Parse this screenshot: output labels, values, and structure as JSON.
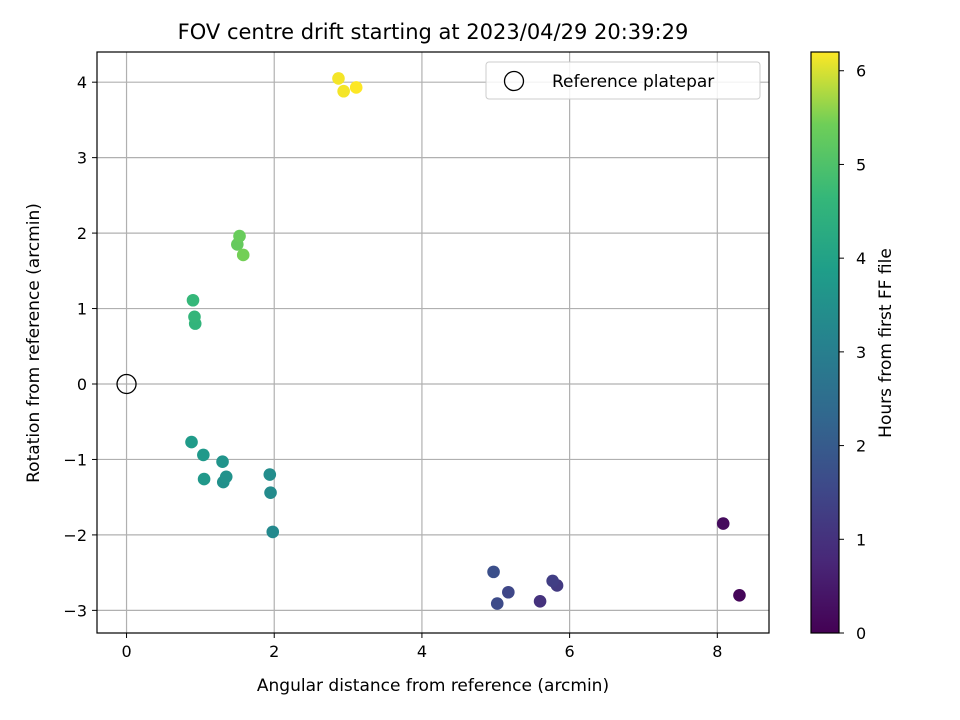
{
  "chart_data": {
    "type": "scatter",
    "title": "FOV centre drift starting at 2023/04/29 20:39:29",
    "xlabel": "Angular distance from reference (arcmin)",
    "ylabel": "Rotation from reference (arcmin)",
    "xlim": [
      -0.4,
      8.7
    ],
    "ylim": [
      -3.3,
      4.4
    ],
    "xticks": [
      0,
      2,
      4,
      6,
      8
    ],
    "yticks": [
      -3,
      -2,
      -1,
      0,
      1,
      2,
      3,
      4
    ],
    "xtick_labels": [
      "0",
      "2",
      "4",
      "6",
      "8"
    ],
    "ytick_labels": [
      "−3",
      "−2",
      "−1",
      "0",
      "1",
      "2",
      "3",
      "4"
    ],
    "grid": true,
    "legend": {
      "placement": "top-right",
      "entries": [
        {
          "label": "Reference platepar",
          "marker": "open-circle",
          "color": "#000000"
        }
      ]
    },
    "reference_point": {
      "x": 0,
      "y": 0
    },
    "colorbar": {
      "label": "Hours from first FF file",
      "colormap": "viridis",
      "range": [
        0,
        6.2
      ],
      "ticks": [
        0,
        1,
        2,
        3,
        4,
        5,
        6
      ],
      "tick_labels": [
        "0",
        "1",
        "2",
        "3",
        "4",
        "5",
        "6"
      ]
    },
    "series": [
      {
        "points": [
          {
            "x": 8.3,
            "y": -2.8,
            "c": 0.1
          },
          {
            "x": 8.08,
            "y": -1.85,
            "c": 0.2
          },
          {
            "x": 5.6,
            "y": -2.88,
            "c": 1.0
          },
          {
            "x": 5.83,
            "y": -2.67,
            "c": 1.2
          },
          {
            "x": 5.77,
            "y": -2.61,
            "c": 1.3
          },
          {
            "x": 5.17,
            "y": -2.76,
            "c": 1.5
          },
          {
            "x": 5.02,
            "y": -2.91,
            "c": 1.6
          },
          {
            "x": 4.97,
            "y": -2.49,
            "c": 1.7
          },
          {
            "x": 1.98,
            "y": -1.96,
            "c": 3.3
          },
          {
            "x": 1.95,
            "y": -1.44,
            "c": 3.35
          },
          {
            "x": 1.94,
            "y": -1.2,
            "c": 3.4
          },
          {
            "x": 1.31,
            "y": -1.3,
            "c": 3.5
          },
          {
            "x": 1.35,
            "y": -1.23,
            "c": 3.55
          },
          {
            "x": 1.3,
            "y": -1.03,
            "c": 3.6
          },
          {
            "x": 1.05,
            "y": -1.26,
            "c": 3.7
          },
          {
            "x": 1.04,
            "y": -0.94,
            "c": 3.75
          },
          {
            "x": 0.88,
            "y": -0.77,
            "c": 3.8
          },
          {
            "x": 0.93,
            "y": 0.8,
            "c": 4.55
          },
          {
            "x": 0.92,
            "y": 0.89,
            "c": 4.6
          },
          {
            "x": 0.9,
            "y": 1.11,
            "c": 4.65
          },
          {
            "x": 1.5,
            "y": 1.85,
            "c": 5.3
          },
          {
            "x": 1.53,
            "y": 1.96,
            "c": 5.35
          },
          {
            "x": 1.58,
            "y": 1.71,
            "c": 5.45
          },
          {
            "x": 2.87,
            "y": 4.05,
            "c": 6.15
          },
          {
            "x": 2.94,
            "y": 3.88,
            "c": 6.15
          },
          {
            "x": 3.11,
            "y": 3.93,
            "c": 6.2
          }
        ]
      }
    ]
  }
}
